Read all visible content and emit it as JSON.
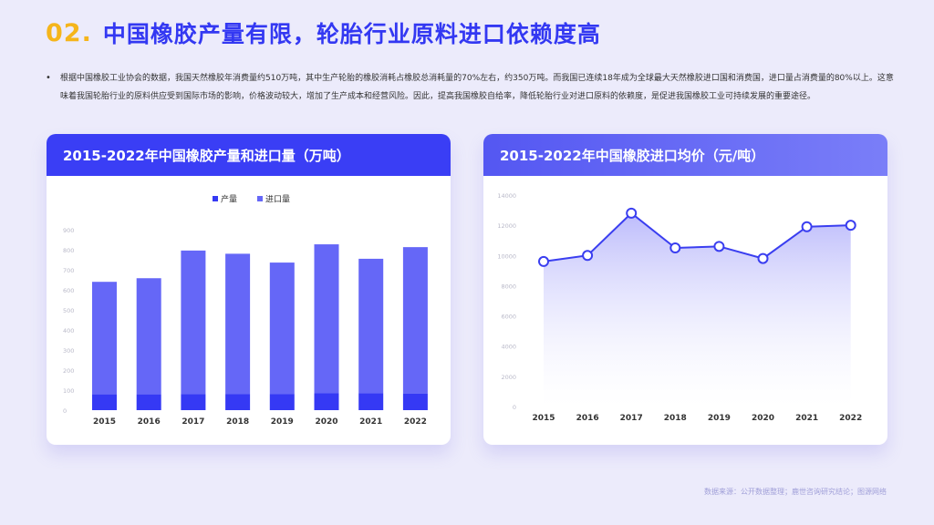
{
  "header": {
    "number": "02.",
    "title": "中国橡胶产量有限，轮胎行业原料进口依赖度高"
  },
  "intro": {
    "bullet": "•",
    "text": "根据中国橡胶工业协会的数据，我国天然橡胶年消费量约510万吨，其中生产轮胎的橡胶消耗占橡胶总消耗量的70%左右，约350万吨。而我国已连续18年成为全球最大天然橡胶进口国和消费国，进口量占消费量的80%以上。这意味着我国轮胎行业的原料供应受到国际市场的影响，价格波动较大，增加了生产成本和经营风险。因此，提高我国橡胶自给率，降低轮胎行业对进口原料的依赖度，是促进我国橡胶工业可持续发展的重要途径。"
  },
  "colors": {
    "production": "#3539f4",
    "imports": "#6567f7",
    "line": "#3a3ef0",
    "area_top": "#b9b8fb"
  },
  "chart_data": [
    {
      "type": "bar",
      "stacked": true,
      "title": "2015-2022年中国橡胶产量和进口量（万吨）",
      "categories": [
        "2015",
        "2016",
        "2017",
        "2018",
        "2019",
        "2020",
        "2021",
        "2022"
      ],
      "series": [
        {
          "name": "产量",
          "values": [
            79,
            79,
            80,
            81,
            81,
            84,
            85,
            82
          ]
        },
        {
          "name": "进口量",
          "values": [
            561,
            579,
            716,
            699,
            655,
            743,
            670,
            731
          ]
        }
      ],
      "ylim": [
        0,
        900
      ],
      "yticks": [
        "0",
        "100",
        "200",
        "300",
        "400",
        "500",
        "600",
        "700",
        "800",
        "900"
      ],
      "legend": "top-center",
      "grid": false
    },
    {
      "type": "area",
      "title": "2015-2022年中国橡胶进口均价（元/吨）",
      "x": [
        "2015",
        "2016",
        "2017",
        "2018",
        "2019",
        "2020",
        "2021",
        "2022"
      ],
      "values": [
        9600,
        10000,
        12800,
        10500,
        10600,
        9800,
        11900,
        12000
      ],
      "ylim": [
        0,
        14000
      ],
      "yticks": [
        "0",
        "2000",
        "4000",
        "6000",
        "8000",
        "10000",
        "12000",
        "14000"
      ],
      "grid": false
    }
  ],
  "source": "数据来源：公开数据整理；鹿世咨询研究结论；图源网络"
}
